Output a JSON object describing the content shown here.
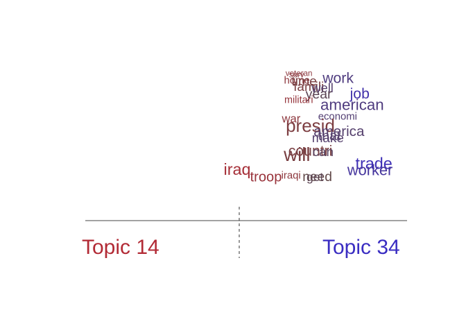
{
  "chart_data": {
    "type": "scatter",
    "title": "",
    "xlabel": "",
    "ylabel": "",
    "topics": {
      "left": {
        "label": "Topic 14",
        "color": "#B22A35"
      },
      "right": {
        "label": "Topic 34",
        "color": "#3A2DC2"
      }
    },
    "xlim": [
      -1,
      1
    ],
    "ylim": [
      0,
      1
    ],
    "words": [
      {
        "text": "veteran",
        "x": 0.245,
        "y": 0.935,
        "size": 0.15,
        "lean": -0.55
      },
      {
        "text": "serv",
        "x": 0.266,
        "y": 0.925,
        "size": 0.15,
        "lean": -0.55
      },
      {
        "text": "home",
        "x": 0.235,
        "y": 0.885,
        "size": 0.35,
        "lean": -0.55
      },
      {
        "text": "time",
        "x": 0.281,
        "y": 0.872,
        "size": 0.62,
        "lean": -0.3
      },
      {
        "text": "famili",
        "x": 0.294,
        "y": 0.838,
        "size": 0.58,
        "lean": -0.3
      },
      {
        "text": "work",
        "x": 0.475,
        "y": 0.89,
        "size": 0.72,
        "lean": 0.45
      },
      {
        "text": "well",
        "x": 0.406,
        "y": 0.829,
        "size": 0.55,
        "lean": 0.3
      },
      {
        "text": "year",
        "x": 0.369,
        "y": 0.789,
        "size": 0.62,
        "lean": 0.1
      },
      {
        "text": "job",
        "x": 0.645,
        "y": 0.789,
        "size": 0.72,
        "lean": 0.8
      },
      {
        "text": "militari",
        "x": 0.237,
        "y": 0.761,
        "size": 0.32,
        "lean": -0.65
      },
      {
        "text": "american",
        "x": 0.461,
        "y": 0.715,
        "size": 0.78,
        "lean": 0.45
      },
      {
        "text": "economi",
        "x": 0.447,
        "y": 0.653,
        "size": 0.35,
        "lean": 0.35
      },
      {
        "text": "war",
        "x": 0.222,
        "y": 0.634,
        "size": 0.45,
        "lean": -0.55
      },
      {
        "text": "presid",
        "x": 0.246,
        "y": 0.575,
        "size": 1.0,
        "lean": -0.35
      },
      {
        "text": "america",
        "x": 0.419,
        "y": 0.548,
        "size": 0.68,
        "lean": 0.3
      },
      {
        "text": "that",
        "x": 0.448,
        "y": 0.521,
        "size": 0.62,
        "lean": 0.3
      },
      {
        "text": "make",
        "x": 0.408,
        "y": 0.506,
        "size": 0.58,
        "lean": 0.3
      },
      {
        "text": "countri",
        "x": 0.262,
        "y": 0.42,
        "size": 0.72,
        "lean": -0.3
      },
      {
        "text": "will",
        "x": 0.233,
        "y": 0.386,
        "size": 1.1,
        "lean": -0.3
      },
      {
        "text": "can",
        "x": 0.412,
        "y": 0.418,
        "size": 0.58,
        "lean": 0.2
      },
      {
        "text": "trade",
        "x": 0.679,
        "y": 0.333,
        "size": 0.85,
        "lean": 0.9
      },
      {
        "text": "iraq",
        "x": -0.14,
        "y": 0.297,
        "size": 0.85,
        "lean": -0.85
      },
      {
        "text": "worker",
        "x": 0.629,
        "y": 0.294,
        "size": 0.75,
        "lean": 0.7
      },
      {
        "text": "iraqi",
        "x": 0.218,
        "y": 0.272,
        "size": 0.35,
        "lean": -0.55
      },
      {
        "text": "need",
        "x": 0.35,
        "y": 0.255,
        "size": 0.6,
        "lean": 0.0
      },
      {
        "text": "get",
        "x": 0.375,
        "y": 0.255,
        "size": 0.5,
        "lean": 0.1
      },
      {
        "text": "troop",
        "x": 0.024,
        "y": 0.253,
        "size": 0.65,
        "lean": -0.7
      }
    ]
  }
}
